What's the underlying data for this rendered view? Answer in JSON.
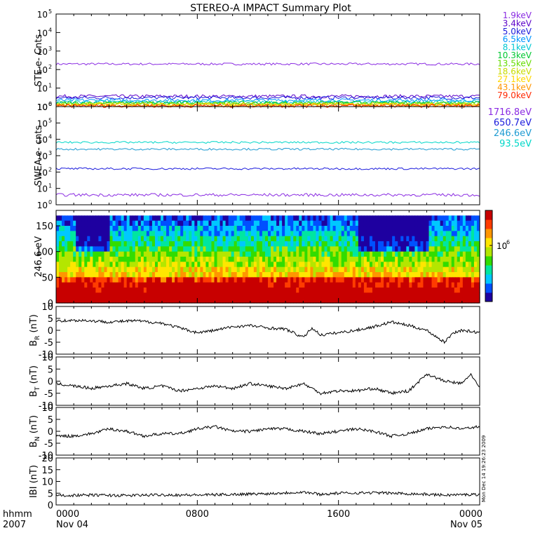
{
  "title": "STEREO-A IMPACT Summary Plot",
  "stamp": "Mon Dec 14 19:26:23 2009",
  "time_axis": {
    "row1_label": "hhmm",
    "row2_label": "2007",
    "ticks": [
      {
        "hhmm": "0000",
        "date": "Nov 04",
        "hour": 0
      },
      {
        "hhmm": "0800",
        "date": "",
        "hour": 8
      },
      {
        "hhmm": "1600",
        "date": "",
        "hour": 16
      },
      {
        "hhmm": "0000",
        "date": "Nov 05",
        "hour": 24
      }
    ],
    "range_hours": [
      0,
      24
    ]
  },
  "chart_data": [
    {
      "type": "line",
      "ylabel": "STE e- Cnts",
      "yscale": "log",
      "ylim": [
        1,
        100000
      ],
      "yticks": [
        {
          "value": 1,
          "base": "10",
          "exp": "0"
        },
        {
          "value": 10,
          "base": "10",
          "exp": "1"
        },
        {
          "value": 100,
          "base": "10",
          "exp": "2"
        },
        {
          "value": 1000,
          "base": "10",
          "exp": "3"
        },
        {
          "value": 10000,
          "base": "10",
          "exp": "4"
        },
        {
          "value": 100000,
          "base": "10",
          "exp": "5"
        }
      ],
      "series": [
        {
          "name": "1.9keV",
          "color": "#8a2be2",
          "level": 200
        },
        {
          "name": "3.4keV",
          "color": "#5a00c8",
          "level": 3.6
        },
        {
          "name": "5.0keV",
          "color": "#1a1adc",
          "level": 3.0
        },
        {
          "name": "6.5keV",
          "color": "#0096ff",
          "level": 2.2
        },
        {
          "name": "8.1keV",
          "color": "#00c8d2",
          "level": 1.8
        },
        {
          "name": "10.3keV",
          "color": "#00c832",
          "level": 1.6
        },
        {
          "name": "13.5keV",
          "color": "#64dc00",
          "level": 1.45
        },
        {
          "name": "18.6keV",
          "color": "#c8dc00",
          "level": 1.35
        },
        {
          "name": "27.1keV",
          "color": "#ffd700",
          "level": 1.25
        },
        {
          "name": "43.1keV",
          "color": "#ff9600",
          "level": 1.15
        },
        {
          "name": "79.0keV",
          "color": "#ff2800",
          "level": 1.1
        }
      ]
    },
    {
      "type": "line",
      "ylabel": "SWEA e- cnts",
      "yscale": "log",
      "ylim": [
        1,
        1000000
      ],
      "yticks": [
        {
          "value": 1,
          "base": "10",
          "exp": "0"
        },
        {
          "value": 10,
          "base": "10",
          "exp": "1"
        },
        {
          "value": 100,
          "base": "10",
          "exp": "2"
        },
        {
          "value": 1000,
          "base": "10",
          "exp": "3"
        },
        {
          "value": 10000,
          "base": "10",
          "exp": "4"
        },
        {
          "value": 100000,
          "base": "10",
          "exp": "5"
        },
        {
          "value": 1000000,
          "base": "10",
          "exp": "6"
        }
      ],
      "series": [
        {
          "name": "1716.8eV",
          "color": "#8a2be2",
          "level": 4
        },
        {
          "name": "650.7eV",
          "color": "#1a1adc",
          "level": 160
        },
        {
          "name": "246.6eV",
          "color": "#1e9bd2",
          "level": 2500
        },
        {
          "name": "93.5eV",
          "color": "#00d7c8",
          "level": 6500
        }
      ]
    },
    {
      "type": "heatmap",
      "ylabel": "246.6 eV",
      "ylim": [
        0,
        180
      ],
      "yticks": [
        0,
        50,
        100,
        150
      ],
      "colorbar_label": "10",
      "colorbar_exp": "6",
      "colormap": [
        "#1e00a0",
        "#0050ff",
        "#00c8ff",
        "#00e6a0",
        "#32dc00",
        "#b4e600",
        "#ffe600",
        "#ff9600",
        "#ff3c00",
        "#c80000"
      ]
    },
    {
      "type": "line",
      "ylabel": "B",
      "ylabel_sub": "R",
      "ylabel_unit": "(nT)",
      "ylim": [
        -10,
        10
      ],
      "yticks": [
        -10,
        -5,
        0,
        5,
        10
      ],
      "segments": [
        [
          0,
          4
        ],
        [
          1.5,
          4.2
        ],
        [
          3,
          3.5
        ],
        [
          4.5,
          4
        ],
        [
          6,
          3
        ],
        [
          7,
          1
        ],
        [
          8,
          -1
        ],
        [
          9,
          0
        ],
        [
          10,
          1.5
        ],
        [
          11,
          2
        ],
        [
          12,
          1
        ],
        [
          13,
          0.5
        ],
        [
          14,
          -3
        ],
        [
          14.5,
          1
        ],
        [
          15,
          -2
        ],
        [
          16,
          -1
        ],
        [
          17,
          0
        ],
        [
          18,
          1.5
        ],
        [
          19,
          3.5
        ],
        [
          20,
          2
        ],
        [
          21,
          0
        ],
        [
          22,
          -5
        ],
        [
          22.5,
          -1
        ],
        [
          23,
          0
        ],
        [
          24,
          -1
        ]
      ]
    },
    {
      "type": "line",
      "ylabel": "B",
      "ylabel_sub": "T",
      "ylabel_unit": "(nT)",
      "ylim": [
        -10,
        10
      ],
      "yticks": [
        -10,
        -5,
        0,
        5,
        10
      ],
      "segments": [
        [
          0,
          -1
        ],
        [
          1,
          -2
        ],
        [
          2,
          -3
        ],
        [
          3,
          -2
        ],
        [
          4,
          -1
        ],
        [
          5,
          -3
        ],
        [
          6,
          -2
        ],
        [
          7,
          -4
        ],
        [
          8,
          -3
        ],
        [
          9,
          -2
        ],
        [
          10,
          -3
        ],
        [
          11,
          -1
        ],
        [
          12,
          -2
        ],
        [
          13,
          -3
        ],
        [
          14,
          -1
        ],
        [
          15,
          -5
        ],
        [
          16,
          -4
        ],
        [
          17,
          -4
        ],
        [
          18,
          -3
        ],
        [
          19,
          -5
        ],
        [
          20,
          -4
        ],
        [
          21,
          3
        ],
        [
          22,
          0
        ],
        [
          23,
          -1
        ],
        [
          23.5,
          3
        ],
        [
          24,
          -3
        ]
      ]
    },
    {
      "type": "line",
      "ylabel": "B",
      "ylabel_sub": "N",
      "ylabel_unit": "(nT)",
      "ylim": [
        -10,
        10
      ],
      "yticks": [
        -10,
        -5,
        0,
        5,
        10
      ],
      "segments": [
        [
          0,
          -2
        ],
        [
          1,
          -2
        ],
        [
          2,
          -1
        ],
        [
          3,
          1
        ],
        [
          4,
          0
        ],
        [
          5,
          -2
        ],
        [
          6,
          -1
        ],
        [
          7,
          -1
        ],
        [
          8,
          1
        ],
        [
          9,
          2
        ],
        [
          10,
          0
        ],
        [
          11,
          0
        ],
        [
          12,
          1
        ],
        [
          13,
          1
        ],
        [
          14,
          0
        ],
        [
          15,
          -1
        ],
        [
          16,
          0
        ],
        [
          17,
          1
        ],
        [
          18,
          0
        ],
        [
          19,
          -2
        ],
        [
          20,
          -1
        ],
        [
          21,
          1
        ],
        [
          22,
          2
        ],
        [
          23,
          1
        ],
        [
          24,
          2
        ]
      ]
    },
    {
      "type": "line",
      "ylabel": "IBI",
      "ylabel_unit": "(nT)",
      "ylim": [
        0,
        20
      ],
      "yticks": [
        0,
        5,
        10,
        15,
        20
      ],
      "segments": [
        [
          0,
          4
        ],
        [
          2,
          4.2
        ],
        [
          4,
          4
        ],
        [
          6,
          4.3
        ],
        [
          8,
          4.2
        ],
        [
          10,
          4.5
        ],
        [
          12,
          4.8
        ],
        [
          14,
          5.5
        ],
        [
          15,
          4.5
        ],
        [
          16,
          5
        ],
        [
          18,
          5.2
        ],
        [
          20,
          4.8
        ],
        [
          22,
          4.2
        ],
        [
          24,
          4.5
        ]
      ]
    }
  ]
}
